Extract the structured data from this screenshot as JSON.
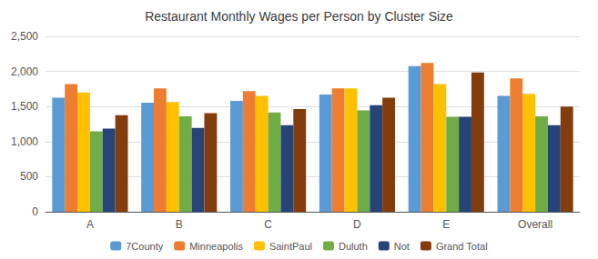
{
  "chart_data": {
    "type": "bar",
    "title": "Restaurant Monthly Wages per Person by Cluster Size",
    "categories": [
      "A",
      "B",
      "C",
      "D",
      "E",
      "Overall"
    ],
    "series": [
      {
        "name": "7County",
        "color": "#5B9BD5",
        "values": [
          1625,
          1555,
          1580,
          1670,
          2075,
          1650
        ]
      },
      {
        "name": "Minneapolis",
        "color": "#ED7D31",
        "values": [
          1820,
          1760,
          1720,
          1760,
          2120,
          1900
        ]
      },
      {
        "name": "SaintPaul",
        "color": "#FFC000",
        "values": [
          1700,
          1565,
          1650,
          1760,
          1820,
          1680
        ]
      },
      {
        "name": "Duluth",
        "color": "#70AD47",
        "values": [
          1145,
          1360,
          1415,
          1445,
          1355,
          1360
        ]
      },
      {
        "name": "Not",
        "color": "#264478",
        "values": [
          1185,
          1195,
          1235,
          1520,
          1355,
          1235
        ]
      },
      {
        "name": "Grand Total",
        "color": "#843C0C",
        "values": [
          1375,
          1405,
          1465,
          1625,
          1985,
          1500
        ]
      }
    ],
    "ylim": [
      0,
      2500
    ],
    "yticks": [
      0,
      500,
      1000,
      1500,
      2000,
      2500
    ],
    "grid": true,
    "legend": "bottom"
  }
}
